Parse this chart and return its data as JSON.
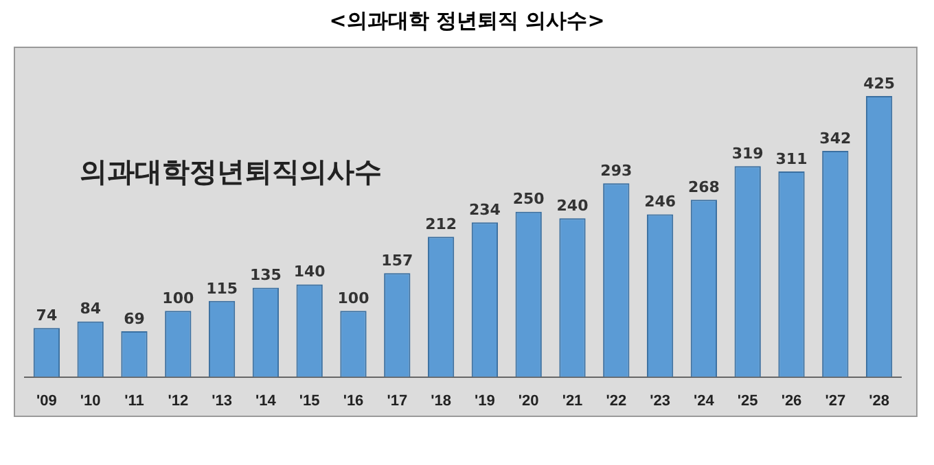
{
  "chart_data": {
    "type": "bar",
    "title": "<의과대학 정년퇴직 의사수>",
    "subtitle": "의과대학정년퇴직의사수",
    "categories": [
      "'09",
      "'10",
      "'11",
      "'12",
      "'13",
      "'14",
      "'15",
      "'16",
      "'17",
      "'18",
      "'19",
      "'20",
      "'21",
      "'22",
      "'23",
      "'24",
      "'25",
      "'26",
      "'27",
      "'28"
    ],
    "values": [
      74,
      84,
      69,
      100,
      115,
      135,
      140,
      100,
      157,
      212,
      234,
      250,
      240,
      293,
      246,
      268,
      319,
      311,
      342,
      425
    ],
    "color": "#5b9bd5",
    "data_labels": true,
    "grid": false,
    "legend": false,
    "tick_labels": "x"
  }
}
